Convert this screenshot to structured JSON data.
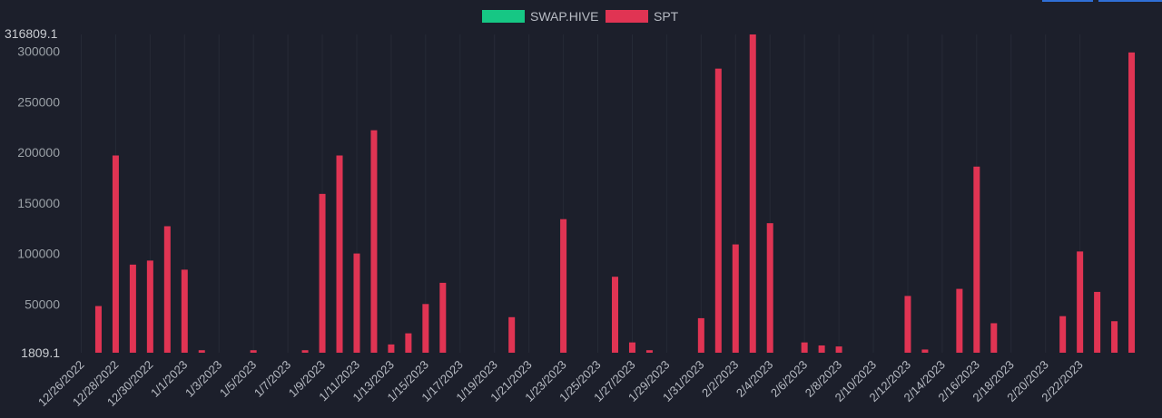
{
  "chart_data": {
    "type": "bar",
    "legend_position": "top-center",
    "grid": "vertical-only",
    "legend": [
      {
        "name": "SWAP.HIVE",
        "color": "#16c784"
      },
      {
        "name": "SPT",
        "color": "#e03453"
      }
    ],
    "ylim": [
      1809.1,
      316809.1
    ],
    "y_edge_labels": [
      "316809.1",
      "1809.1"
    ],
    "y_ticks": [
      300000,
      250000,
      200000,
      150000,
      100000,
      50000
    ],
    "y_tick_labels": [
      "300000",
      "250000",
      "200000",
      "150000",
      "100000",
      "50000"
    ],
    "x_tick_labels": [
      "12/26/2022",
      "12/28/2022",
      "12/30/2022",
      "1/1/2023",
      "1/3/2023",
      "1/5/2023",
      "1/7/2023",
      "1/9/2023",
      "1/11/2023",
      "1/13/2023",
      "1/15/2023",
      "1/17/2023",
      "1/19/2023",
      "1/21/2023",
      "1/23/2023",
      "1/25/2023",
      "1/27/2023",
      "1/29/2023",
      "1/31/2023",
      "2/2/2023",
      "2/4/2023",
      "2/6/2023",
      "2/8/2023",
      "2/10/2023",
      "2/12/2023",
      "2/14/2023",
      "2/16/2023",
      "2/18/2023",
      "2/20/2023",
      "2/22/2023"
    ],
    "categories": [
      "12/26/2022",
      "12/27/2022",
      "12/28/2022",
      "12/29/2022",
      "12/30/2022",
      "12/31/2022",
      "1/1/2023",
      "1/2/2023",
      "1/3/2023",
      "1/4/2023",
      "1/5/2023",
      "1/6/2023",
      "1/7/2023",
      "1/8/2023",
      "1/9/2023",
      "1/10/2023",
      "1/11/2023",
      "1/12/2023",
      "1/13/2023",
      "1/14/2023",
      "1/15/2023",
      "1/16/2023",
      "1/17/2023",
      "1/18/2023",
      "1/19/2023",
      "1/20/2023",
      "1/21/2023",
      "1/22/2023",
      "1/23/2023",
      "1/24/2023",
      "1/25/2023",
      "1/26/2023",
      "1/27/2023",
      "1/28/2023",
      "1/29/2023",
      "1/30/2023",
      "1/31/2023",
      "2/1/2023",
      "2/2/2023",
      "2/3/2023",
      "2/4/2023",
      "2/5/2023",
      "2/6/2023",
      "2/7/2023",
      "2/8/2023",
      "2/9/2023",
      "2/10/2023",
      "2/11/2023",
      "2/12/2023",
      "2/13/2023",
      "2/14/2023",
      "2/15/2023",
      "2/16/2023",
      "2/17/2023",
      "2/18/2023",
      "2/19/2023",
      "2/20/2023",
      "2/21/2023",
      "2/22/2023",
      "2/23/2023",
      "2/24/2023",
      "2/25/2023",
      "2/26/2023"
    ],
    "series": [
      {
        "name": "SWAP.HIVE",
        "color": "#16c784",
        "values": [
          0,
          0,
          0,
          0,
          0,
          0,
          0,
          0,
          0,
          0,
          0,
          0,
          0,
          0,
          0,
          0,
          0,
          0,
          0,
          0,
          0,
          0,
          0,
          0,
          0,
          0,
          0,
          0,
          0,
          0,
          0,
          0,
          0,
          0,
          0,
          0,
          0,
          0,
          0,
          0,
          0,
          0,
          0,
          0,
          0,
          0,
          0,
          0,
          0,
          0,
          0,
          0,
          0,
          0,
          0,
          0,
          0,
          0,
          0,
          0,
          0,
          0,
          0
        ]
      },
      {
        "name": "SPT",
        "color": "#e03453",
        "values": [
          0,
          48000,
          197000,
          89000,
          93000,
          127000,
          84000,
          4000,
          0,
          0,
          4000,
          0,
          0,
          4000,
          159000,
          197000,
          100000,
          222000,
          10000,
          21000,
          50000,
          71000,
          0,
          0,
          0,
          37000,
          0,
          0,
          134000,
          0,
          0,
          77000,
          12000,
          3000,
          0,
          0,
          36000,
          283000,
          109000,
          316809,
          130000,
          0,
          12000,
          9000,
          8000,
          0,
          0,
          0,
          58000,
          5000,
          0,
          65000,
          186000,
          31000,
          0,
          0,
          0,
          38000,
          102000,
          62000,
          33000,
          299000,
          0
        ]
      }
    ]
  }
}
